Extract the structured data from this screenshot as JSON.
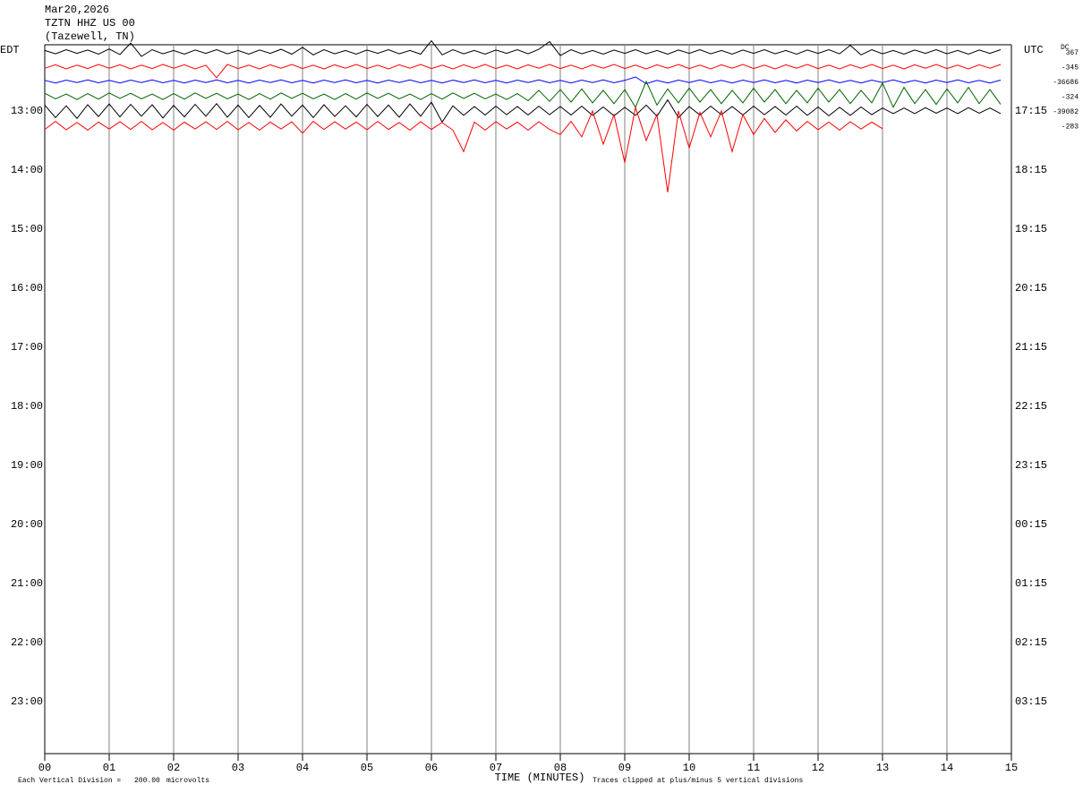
{
  "chart_data": {
    "type": "helicorder",
    "date": "Mar20,2026",
    "station": "TZTN HHZ US 00",
    "location": "(Tazewell, TN)",
    "left_zone": "EDT",
    "right_zone": "UTC",
    "dc_header": "DC",
    "xlabel": "TIME (MINUTES)",
    "xlim": [
      0,
      15
    ],
    "xticks": [
      {
        "value": 0,
        "label": "00"
      },
      {
        "value": 1,
        "label": "01"
      },
      {
        "value": 2,
        "label": "02"
      },
      {
        "value": 3,
        "label": "03"
      },
      {
        "value": 4,
        "label": "04"
      },
      {
        "value": 5,
        "label": "05"
      },
      {
        "value": 6,
        "label": "06"
      },
      {
        "value": 7,
        "label": "07"
      },
      {
        "value": 8,
        "label": "08"
      },
      {
        "value": 9,
        "label": "09"
      },
      {
        "value": 10,
        "label": "10"
      },
      {
        "value": 11,
        "label": "11"
      },
      {
        "value": 12,
        "label": "12"
      },
      {
        "value": 13,
        "label": "13"
      },
      {
        "value": 14,
        "label": "14"
      },
      15
    ],
    "grid": true,
    "division_text": "Each Vertical Division =",
    "division": {
      "value": 200,
      "label": "200.00"
    },
    "division_unit": "microvolts",
    "clip_note": "Traces clipped at plus/minus 5 vertical divisions",
    "left_labels": [
      null,
      null,
      null,
      null,
      "13:00",
      null,
      null,
      null,
      "14:00",
      null,
      null,
      null,
      "15:00",
      null,
      null,
      null,
      "16:00",
      null,
      null,
      null,
      "17:00",
      null,
      null,
      null,
      "18:00",
      null,
      null,
      null,
      "19:00",
      null,
      null,
      null,
      "20:00",
      null,
      null,
      null,
      "21:00",
      null,
      null,
      null,
      "22:00",
      null,
      null,
      null,
      "23:00",
      null,
      null,
      null
    ],
    "right_labels": [
      null,
      null,
      null,
      null,
      "17:15",
      null,
      null,
      null,
      "18:15",
      null,
      null,
      null,
      "19:15",
      null,
      null,
      null,
      "20:15",
      null,
      null,
      null,
      "21:15",
      null,
      null,
      null,
      "22:15",
      null,
      null,
      null,
      "23:15",
      null,
      null,
      null,
      "00:15",
      null,
      null,
      null,
      "01:15",
      null,
      null,
      null,
      "02:15",
      null,
      null,
      null,
      "03:15",
      null,
      null,
      null
    ],
    "series": [
      {
        "color": "#000000",
        "dc": 367,
        "values": [
          20,
          -25,
          30,
          -20,
          25,
          -30,
          40,
          -35,
          120,
          -60,
          30,
          -25,
          20,
          -30,
          25,
          -20,
          30,
          -25,
          20,
          -30,
          25,
          -20,
          35,
          -30,
          60,
          -40,
          30,
          -25,
          20,
          -30,
          25,
          -20,
          30,
          -25,
          20,
          -30,
          150,
          -40,
          30,
          -25,
          20,
          -30,
          25,
          -20,
          30,
          -25,
          35,
          140,
          -50,
          30,
          -25,
          20,
          -30,
          25,
          -20,
          30,
          -25,
          20,
          -30,
          25,
          -20,
          30,
          -25,
          20,
          -30,
          25,
          -20,
          30,
          -25,
          20,
          -30,
          25,
          -20,
          30,
          -25,
          90,
          -40,
          30,
          -25,
          20,
          -30,
          25,
          -20,
          30,
          -25,
          20,
          -30,
          25,
          -20,
          30
        ]
      },
      {
        "color": "#ff0000",
        "dc": -345,
        "values": [
          -20,
          25,
          -30,
          20,
          -25,
          30,
          -20,
          25,
          -30,
          20,
          -25,
          30,
          -20,
          25,
          -30,
          20,
          -150,
          30,
          -25,
          20,
          -30,
          25,
          -20,
          30,
          -25,
          20,
          -30,
          25,
          -20,
          30,
          -25,
          20,
          -30,
          25,
          -20,
          30,
          -25,
          20,
          -30,
          25,
          -20,
          30,
          -25,
          20,
          -30,
          25,
          -20,
          30,
          -25,
          20,
          -30,
          25,
          -20,
          30,
          -25,
          20,
          -30,
          25,
          -20,
          30,
          -25,
          20,
          -30,
          25,
          -20,
          30,
          -25,
          20,
          -30,
          25,
          -20,
          30,
          -25,
          20,
          -30,
          25,
          -20,
          30,
          -25,
          20,
          -30,
          25,
          -20,
          30,
          -25,
          20,
          -30,
          25,
          -20,
          30
        ]
      },
      {
        "color": "#0000ff",
        "dc": -36686,
        "values": [
          15,
          -20,
          18,
          -15,
          20,
          -18,
          15,
          -20,
          18,
          -15,
          20,
          -18,
          15,
          -20,
          18,
          -15,
          20,
          -18,
          15,
          -20,
          18,
          -15,
          20,
          -18,
          15,
          -20,
          18,
          -15,
          20,
          -18,
          15,
          -20,
          18,
          -15,
          20,
          -18,
          15,
          -20,
          18,
          -15,
          20,
          -18,
          15,
          -20,
          18,
          -15,
          20,
          -18,
          15,
          -20,
          18,
          -15,
          20,
          -18,
          15,
          60,
          -30,
          15,
          -20,
          18,
          -15,
          20,
          -18,
          15,
          -20,
          18,
          -15,
          20,
          -18,
          15,
          -20,
          18,
          -15,
          20,
          -18,
          15,
          -20,
          18,
          -15,
          20,
          -18,
          15,
          -20,
          18,
          -15,
          20,
          -18,
          15,
          -20,
          18
        ]
      },
      {
        "color": "#006400",
        "dc": -324,
        "values": [
          40,
          -35,
          30,
          -45,
          35,
          -40,
          45,
          -30,
          40,
          -35,
          30,
          -45,
          35,
          -40,
          45,
          -30,
          40,
          -35,
          30,
          -45,
          35,
          -40,
          45,
          -30,
          40,
          -35,
          30,
          -45,
          35,
          -40,
          45,
          -30,
          40,
          -35,
          30,
          -45,
          35,
          -40,
          45,
          -30,
          40,
          -35,
          30,
          -45,
          35,
          -60,
          80,
          -70,
          90,
          -80,
          100,
          -90,
          80,
          -100,
          90,
          -150,
          200,
          -120,
          100,
          -90,
          110,
          -80,
          90,
          -100,
          80,
          -90,
          110,
          -80,
          90,
          -100,
          80,
          -90,
          110,
          -80,
          90,
          -100,
          80,
          -90,
          180,
          -150,
          120,
          -100,
          90,
          -110,
          100,
          -90,
          120,
          -100,
          90,
          -110
        ]
      },
      {
        "color": "#000000",
        "dc": -39082,
        "values": [
          80,
          -90,
          70,
          -100,
          85,
          -75,
          95,
          -80,
          90,
          -70,
          85,
          -95,
          75,
          -80,
          90,
          -70,
          100,
          -85,
          80,
          -90,
          75,
          -85,
          95,
          -70,
          80,
          -90,
          85,
          -75,
          70,
          -80,
          90,
          -75,
          80,
          -85,
          95,
          -70,
          120,
          -150,
          70,
          -60,
          60,
          -55,
          65,
          -50,
          60,
          -55,
          65,
          -50,
          60,
          -55,
          65,
          -60,
          55,
          -65,
          50,
          -60,
          80,
          -70,
          150,
          -90,
          60,
          -55,
          65,
          -50,
          60,
          -55,
          65,
          -50,
          60,
          -55,
          65,
          -60,
          55,
          -65,
          50,
          -60,
          55,
          -50,
          40,
          -35,
          40,
          -35,
          45,
          -30,
          40,
          -35,
          45,
          -30,
          40,
          -35
        ]
      },
      {
        "color": "#ff0000",
        "dc": -283,
        "values": [
          -50,
          60,
          -55,
          45,
          -60,
          50,
          -45,
          55,
          -50,
          60,
          -55,
          45,
          -60,
          50,
          -45,
          55,
          -50,
          60,
          -55,
          45,
          -60,
          50,
          -45,
          55,
          -100,
          60,
          -50,
          55,
          -45,
          50,
          -55,
          60,
          -50,
          45,
          -60,
          55,
          -50,
          45,
          -60,
          -350,
          50,
          -60,
          55,
          -45,
          50,
          -60,
          55,
          -50,
          -120,
          60,
          -150,
          200,
          -250,
          150,
          -500,
          250,
          -200,
          150,
          -900,
          200,
          -300,
          180,
          -150,
          200,
          -350,
          150,
          -120,
          100,
          -90,
          80,
          -70,
          60,
          -55,
          50,
          -60,
          55,
          -45,
          50,
          -40,
          null,
          null,
          null,
          null,
          null,
          null,
          null,
          null,
          null,
          null,
          null
        ]
      }
    ]
  }
}
